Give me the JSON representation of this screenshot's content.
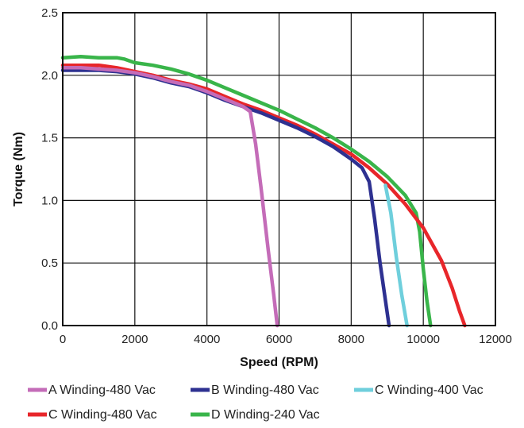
{
  "chart_data": {
    "type": "line",
    "title": "",
    "xlabel": "Speed (RPM)",
    "ylabel": "Torque (Nm)",
    "xlim": [
      0,
      12000
    ],
    "ylim": [
      0,
      2.5
    ],
    "xticks": [
      "0",
      "2000",
      "4000",
      "6000",
      "8000",
      "10000",
      "12000"
    ],
    "yticks": [
      "0.0",
      "0.5",
      "1.0",
      "1.5",
      "2.0",
      "2.5"
    ],
    "grid": true,
    "legend_position": "bottom",
    "series": [
      {
        "name": "A Winding-480 Vac",
        "color": "#c46cb8",
        "x": [
          0,
          500,
          1000,
          1500,
          2000,
          2500,
          3000,
          3500,
          4000,
          4500,
          5000,
          5200,
          5350,
          5500,
          5700,
          5850,
          5950
        ],
        "y": [
          2.06,
          2.06,
          2.05,
          2.04,
          2.02,
          1.99,
          1.95,
          1.92,
          1.87,
          1.81,
          1.75,
          1.71,
          1.45,
          1.1,
          0.6,
          0.25,
          0.0
        ]
      },
      {
        "name": "B Winding-480 Vac",
        "color": "#2e3191",
        "x": [
          0,
          500,
          1000,
          1500,
          2000,
          2500,
          3000,
          3500,
          4000,
          4500,
          5000,
          5500,
          6000,
          6500,
          7000,
          7500,
          8000,
          8300,
          8500,
          8650,
          8800,
          8950,
          9050
        ],
        "y": [
          2.04,
          2.04,
          2.04,
          2.03,
          2.01,
          1.98,
          1.94,
          1.91,
          1.86,
          1.8,
          1.75,
          1.7,
          1.64,
          1.58,
          1.51,
          1.43,
          1.33,
          1.26,
          1.15,
          0.85,
          0.5,
          0.2,
          0.0
        ]
      },
      {
        "name": "C Winding-400 Vac",
        "color": "#6fcfdc",
        "x": [
          8950,
          9100,
          9250,
          9400,
          9550
        ],
        "y": [
          1.12,
          0.9,
          0.55,
          0.25,
          0.0
        ]
      },
      {
        "name": "C Winding-480 Vac",
        "color": "#e8262a",
        "x": [
          0,
          500,
          1000,
          1500,
          2000,
          2500,
          3000,
          3500,
          4000,
          4500,
          5000,
          5500,
          6000,
          6500,
          7000,
          7500,
          8000,
          8500,
          9000,
          9500,
          10000,
          10500,
          10800,
          11000,
          11150
        ],
        "y": [
          2.08,
          2.08,
          2.08,
          2.06,
          2.03,
          2.0,
          1.96,
          1.93,
          1.89,
          1.83,
          1.77,
          1.72,
          1.66,
          1.6,
          1.53,
          1.45,
          1.37,
          1.26,
          1.13,
          0.97,
          0.78,
          0.52,
          0.3,
          0.12,
          0.0
        ]
      },
      {
        "name": "D Winding-240 Vac",
        "color": "#39b54a",
        "x": [
          0,
          500,
          1000,
          1500,
          1700,
          2000,
          2500,
          3000,
          3500,
          4000,
          4500,
          5000,
          5500,
          6000,
          6500,
          7000,
          7500,
          8000,
          8500,
          9000,
          9500,
          9800,
          9900,
          10000,
          10100,
          10200
        ],
        "y": [
          2.14,
          2.15,
          2.14,
          2.14,
          2.13,
          2.1,
          2.08,
          2.05,
          2.01,
          1.96,
          1.9,
          1.84,
          1.78,
          1.72,
          1.65,
          1.58,
          1.5,
          1.41,
          1.31,
          1.19,
          1.04,
          0.9,
          0.75,
          0.45,
          0.2,
          0.0
        ]
      }
    ]
  }
}
